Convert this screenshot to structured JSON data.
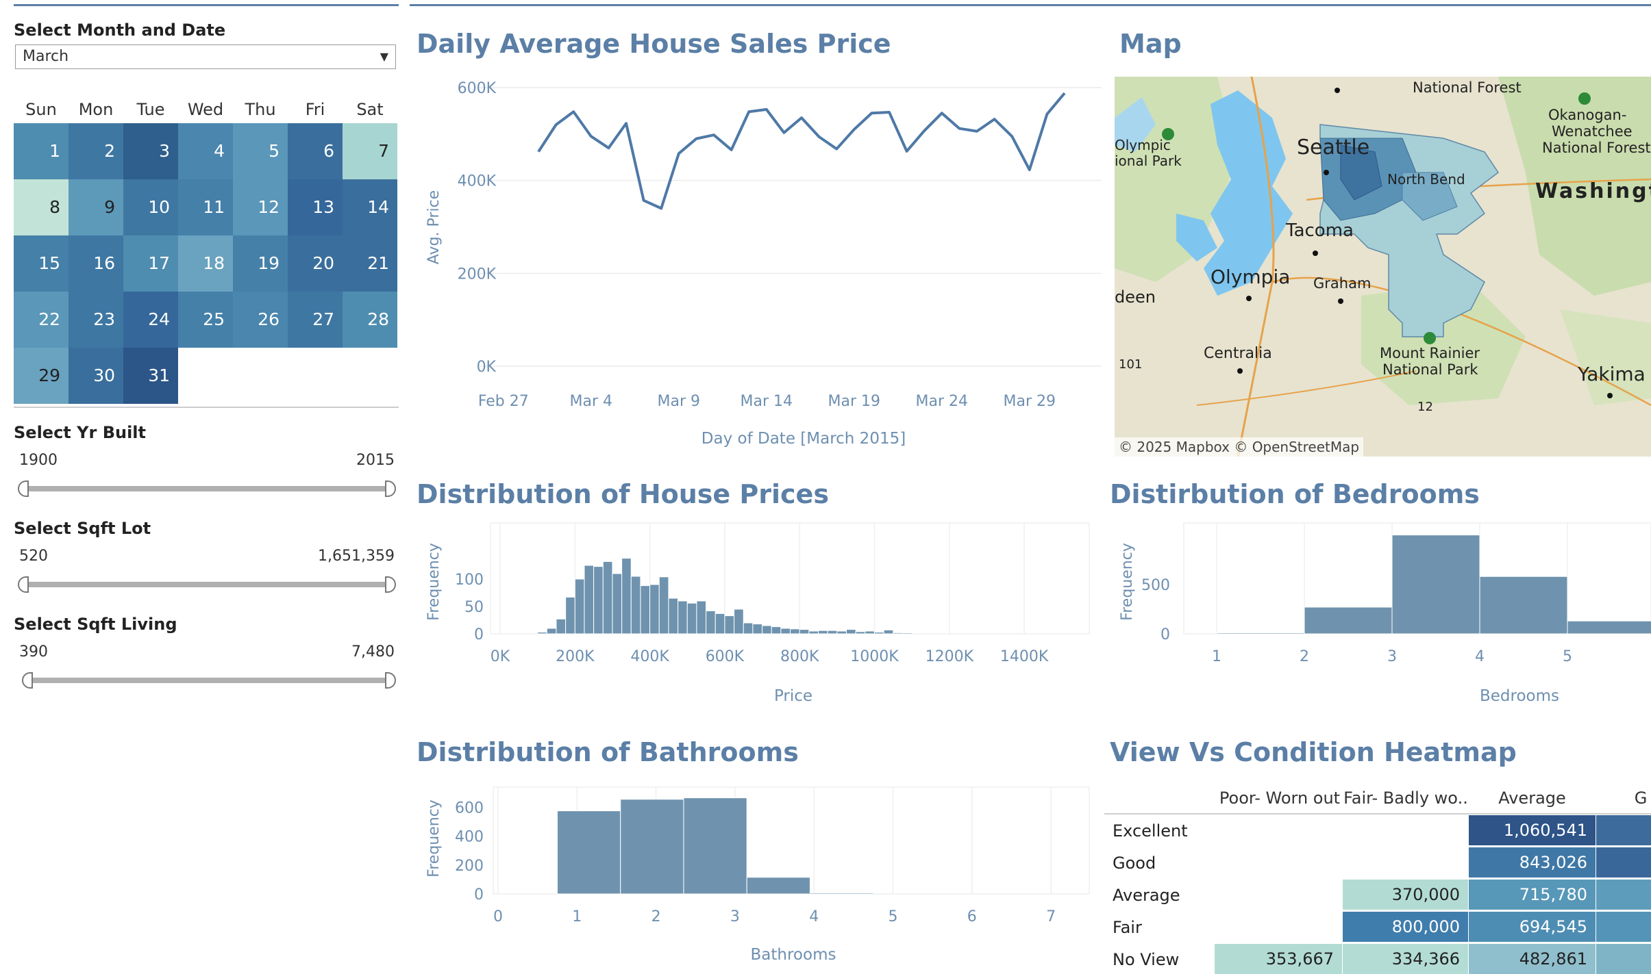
{
  "filters": {
    "month_title": "Select Month and Date",
    "month_value": "March",
    "weekdays": [
      "Sun",
      "Mon",
      "Tue",
      "Wed",
      "Thu",
      "Fri",
      "Sat"
    ],
    "days": [
      {
        "day": "1",
        "col": 0,
        "row": 0,
        "color": "#4f8db0",
        "text_color": "#ffffff"
      },
      {
        "day": "2",
        "col": 1,
        "row": 0,
        "color": "#3f77a3",
        "text_color": "#ffffff"
      },
      {
        "day": "3",
        "col": 2,
        "row": 0,
        "color": "#2f5f8d",
        "text_color": "#ffffff"
      },
      {
        "day": "4",
        "col": 3,
        "row": 0,
        "color": "#4a86ad",
        "text_color": "#ffffff"
      },
      {
        "day": "5",
        "col": 4,
        "row": 0,
        "color": "#5a97b8",
        "text_color": "#ffffff"
      },
      {
        "day": "6",
        "col": 5,
        "row": 0,
        "color": "#3a6e9c",
        "text_color": "#ffffff"
      },
      {
        "day": "7",
        "col": 6,
        "row": 0,
        "color": "#a7d5d1",
        "text_color": "#222222"
      },
      {
        "day": "8",
        "col": 0,
        "row": 1,
        "color": "#c1e3d8",
        "text_color": "#222222"
      },
      {
        "day": "9",
        "col": 1,
        "row": 1,
        "color": "#5d99b9",
        "text_color": "#222222"
      },
      {
        "day": "10",
        "col": 2,
        "row": 1,
        "color": "#3f77a3",
        "text_color": "#ffffff"
      },
      {
        "day": "11",
        "col": 3,
        "row": 1,
        "color": "#4580a9",
        "text_color": "#ffffff"
      },
      {
        "day": "12",
        "col": 4,
        "row": 1,
        "color": "#5a97b8",
        "text_color": "#ffffff"
      },
      {
        "day": "13",
        "col": 5,
        "row": 1,
        "color": "#35679a",
        "text_color": "#ffffff"
      },
      {
        "day": "14",
        "col": 6,
        "row": 1,
        "color": "#3a6e9c",
        "text_color": "#ffffff"
      },
      {
        "day": "15",
        "col": 0,
        "row": 2,
        "color": "#4580a9",
        "text_color": "#ffffff"
      },
      {
        "day": "16",
        "col": 1,
        "row": 2,
        "color": "#3f77a3",
        "text_color": "#ffffff"
      },
      {
        "day": "17",
        "col": 2,
        "row": 2,
        "color": "#4f8db0",
        "text_color": "#ffffff"
      },
      {
        "day": "18",
        "col": 3,
        "row": 2,
        "color": "#6aa3c0",
        "text_color": "#ffffff"
      },
      {
        "day": "19",
        "col": 4,
        "row": 2,
        "color": "#4580a9",
        "text_color": "#ffffff"
      },
      {
        "day": "20",
        "col": 5,
        "row": 2,
        "color": "#3a6e9c",
        "text_color": "#ffffff"
      },
      {
        "day": "21",
        "col": 6,
        "row": 2,
        "color": "#3a6e9c",
        "text_color": "#ffffff"
      },
      {
        "day": "22",
        "col": 0,
        "row": 3,
        "color": "#5a97b8",
        "text_color": "#ffffff"
      },
      {
        "day": "23",
        "col": 1,
        "row": 3,
        "color": "#3f77a3",
        "text_color": "#ffffff"
      },
      {
        "day": "24",
        "col": 2,
        "row": 3,
        "color": "#35679a",
        "text_color": "#ffffff"
      },
      {
        "day": "25",
        "col": 3,
        "row": 3,
        "color": "#4580a9",
        "text_color": "#ffffff"
      },
      {
        "day": "26",
        "col": 4,
        "row": 3,
        "color": "#4a86ad",
        "text_color": "#ffffff"
      },
      {
        "day": "27",
        "col": 5,
        "row": 3,
        "color": "#3f77a3",
        "text_color": "#ffffff"
      },
      {
        "day": "28",
        "col": 6,
        "row": 3,
        "color": "#4f8db0",
        "text_color": "#ffffff"
      },
      {
        "day": "29",
        "col": 0,
        "row": 4,
        "color": "#6aa3c0",
        "text_color": "#222222"
      },
      {
        "day": "30",
        "col": 1,
        "row": 4,
        "color": "#3a6e9c",
        "text_color": "#ffffff"
      },
      {
        "day": "31",
        "col": 2,
        "row": 4,
        "color": "#2c5588",
        "text_color": "#ffffff"
      }
    ],
    "yr_built": {
      "title": "Select Yr Built",
      "min": "1900",
      "max": "2015"
    },
    "sqft_lot": {
      "title": "Select Sqft Lot",
      "min": "520",
      "max": "1,651,359"
    },
    "sqft_living": {
      "title": "Select Sqft Living",
      "min": "390",
      "max": "7,480"
    }
  },
  "titles": {
    "daily": "Daily Average House Sales Price",
    "map": "Map",
    "prices": "Distribution of House Prices",
    "bedrooms": "Distirbution of Bedrooms",
    "bathrooms": "Distribution of Bathrooms",
    "heatmap": "View Vs Condition Heatmap"
  },
  "map": {
    "attribution": "© 2025 Mapbox  © OpenStreetMap",
    "places": [
      {
        "name": "National Forest",
        "size": 21
      },
      {
        "name": "Okanogan-",
        "size": 21
      },
      {
        "name": "Wenatchee",
        "size": 21
      },
      {
        "name": "National Forest",
        "size": 21
      },
      {
        "name": "Olympic",
        "size": 20
      },
      {
        "name": "ional Park",
        "size": 20
      },
      {
        "name": "Washingt",
        "size": 30
      },
      {
        "name": "Seattle",
        "size": 30
      },
      {
        "name": "North Bend",
        "size": 20
      },
      {
        "name": "Tacoma",
        "size": 26
      },
      {
        "name": "Olympia",
        "size": 28
      },
      {
        "name": "Graham",
        "size": 21
      },
      {
        "name": "deen",
        "size": 24
      },
      {
        "name": "Centralia",
        "size": 22
      },
      {
        "name": "Mount Rainier",
        "size": 21
      },
      {
        "name": "National Park",
        "size": 21
      },
      {
        "name": "Yakima",
        "size": 28
      },
      {
        "name": "101",
        "size": 18
      },
      {
        "name": "12",
        "size": 18
      }
    ]
  },
  "chart_data": [
    {
      "type": "line",
      "title": "Daily Average House Sales Price",
      "xlabel": "Day of Date [March 2015]",
      "ylabel": "Avg. Price",
      "x_ticks": [
        "Feb 27",
        "Mar 4",
        "Mar 9",
        "Mar 14",
        "Mar 19",
        "Mar 24",
        "Mar 29"
      ],
      "y_ticks": [
        "0K",
        "200K",
        "400K",
        "600K"
      ],
      "ylim": [
        0,
        620000
      ],
      "x": [
        "Mar 1",
        "Mar 2",
        "Mar 3",
        "Mar 4",
        "Mar 5",
        "Mar 6",
        "Mar 7",
        "Mar 8",
        "Mar 9",
        "Mar 10",
        "Mar 11",
        "Mar 12",
        "Mar 13",
        "Mar 14",
        "Mar 15",
        "Mar 16",
        "Mar 17",
        "Mar 18",
        "Mar 19",
        "Mar 20",
        "Mar 21",
        "Mar 22",
        "Mar 23",
        "Mar 24",
        "Mar 25",
        "Mar 26",
        "Mar 27",
        "Mar 28",
        "Mar 29",
        "Mar 30",
        "Mar 31"
      ],
      "values": [
        462000,
        520000,
        548000,
        495000,
        470000,
        523000,
        357000,
        340000,
        458000,
        490000,
        498000,
        466000,
        548000,
        553000,
        503000,
        535000,
        494000,
        468000,
        510000,
        545000,
        547000,
        463000,
        507000,
        545000,
        512000,
        506000,
        532000,
        495000,
        423000,
        543000,
        588000
      ],
      "color": "#4e79a7"
    },
    {
      "type": "bar",
      "title": "Distribution of House Prices",
      "xlabel": "Price",
      "ylabel": "Frequency",
      "x_ticks": [
        "0K",
        "200K",
        "400K",
        "600K",
        "800K",
        "1000K",
        "1200K",
        "1400K"
      ],
      "y_ticks": [
        "0",
        "50",
        "100"
      ],
      "bin_width": 25000,
      "bin_start": 100000,
      "values": [
        3,
        10,
        27,
        67,
        100,
        125,
        123,
        132,
        110,
        138,
        105,
        88,
        90,
        104,
        65,
        60,
        56,
        60,
        42,
        37,
        33,
        45,
        20,
        18,
        15,
        13,
        10,
        9,
        8,
        5,
        6,
        6,
        5,
        8,
        4,
        5,
        3,
        7,
        2,
        1
      ],
      "ylim": [
        0,
        150
      ],
      "color": "#6f93ae"
    },
    {
      "type": "bar",
      "title": "Distirbution of Bedrooms",
      "xlabel": "Bedrooms",
      "ylabel": "Frequency",
      "x_ticks": [
        "1",
        "2",
        "3",
        "4",
        "5"
      ],
      "y_ticks": [
        "0",
        "500"
      ],
      "bins": [
        [
          1,
          2
        ],
        [
          2,
          3
        ],
        [
          3,
          4
        ],
        [
          4,
          5
        ],
        [
          5,
          6
        ]
      ],
      "values": [
        10,
        270,
        1000,
        580,
        130
      ],
      "ylim": [
        0,
        1050
      ],
      "color": "#6f93ae"
    },
    {
      "type": "bar",
      "title": "Distribution of Bathrooms",
      "xlabel": "Bathrooms",
      "ylabel": "Frequency",
      "x_ticks": [
        "0",
        "1",
        "2",
        "3",
        "4",
        "5",
        "6",
        "7"
      ],
      "y_ticks": [
        "0",
        "200",
        "400",
        "600"
      ],
      "bins": [
        [
          0.75,
          1.55
        ],
        [
          1.55,
          2.35
        ],
        [
          2.35,
          3.15
        ],
        [
          3.15,
          3.95
        ],
        [
          3.95,
          4.75
        ]
      ],
      "values": [
        575,
        655,
        665,
        115,
        5
      ],
      "ylim": [
        0,
        700
      ],
      "color": "#6f93ae"
    },
    {
      "type": "heatmap",
      "title": "View Vs Condition Heatmap",
      "columns": [
        "Poor- Worn out",
        "Fair- Badly wo..",
        "Average",
        "G"
      ],
      "rows": [
        "Excellent",
        "Good",
        "Average",
        "Fair",
        "No View"
      ],
      "cells": [
        [
          null,
          null,
          "1,060,541",
          ""
        ],
        [
          null,
          null,
          "843,026",
          ""
        ],
        [
          null,
          "370,000",
          "715,780",
          ""
        ],
        [
          null,
          "800,000",
          "694,545",
          ""
        ],
        [
          "353,667",
          "334,366",
          "482,861",
          ""
        ]
      ],
      "cell_colors": [
        [
          null,
          null,
          "#2e5488",
          "#3d6c9c"
        ],
        [
          null,
          null,
          "#3f78a6",
          "#3a679a"
        ],
        [
          null,
          "#b2dcd3",
          "#5797b8",
          "#5e9cbc"
        ],
        [
          null,
          "#3f7dad",
          "#4e8db3",
          "#5494b8"
        ],
        [
          "#b2dcd3",
          "#b3ddd4",
          "#8fbfcc",
          "#7fb4c6"
        ]
      ],
      "text_colors": [
        [
          null,
          null,
          "#ffffff",
          "#ffffff"
        ],
        [
          null,
          null,
          "#ffffff",
          "#ffffff"
        ],
        [
          null,
          "#222222",
          "#ffffff",
          "#ffffff"
        ],
        [
          null,
          "#ffffff",
          "#ffffff",
          "#ffffff"
        ],
        [
          "#222222",
          "#222222",
          "#222222",
          "#222222"
        ]
      ]
    }
  ],
  "colors": {
    "accent": "#5b7fa6",
    "bar": "#6f93ae",
    "line": "#4e79a7",
    "axis_text": "#6e8fb0"
  }
}
